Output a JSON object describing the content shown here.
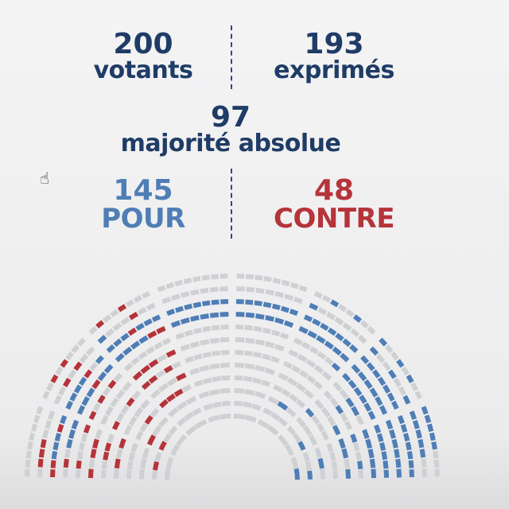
{
  "votants": {
    "number": "200",
    "label": "votants"
  },
  "exprimes": {
    "number": "193",
    "label": "exprimés"
  },
  "majorite": {
    "number": "97",
    "label": "majorité absolue"
  },
  "pour": {
    "number": "145",
    "label": "POUR"
  },
  "contre": {
    "number": "48",
    "label": "CONTRE"
  },
  "colors": {
    "navy": "#1f3c66",
    "pour": "#4f7eb6",
    "contre": "#b5343a",
    "empty": "#cfd0d3"
  },
  "hemicycle": {
    "rows": 12,
    "sectors": 8,
    "votes_pour": 145,
    "votes_contre": 48
  },
  "cursor_icon": "hand-pointer-icon"
}
